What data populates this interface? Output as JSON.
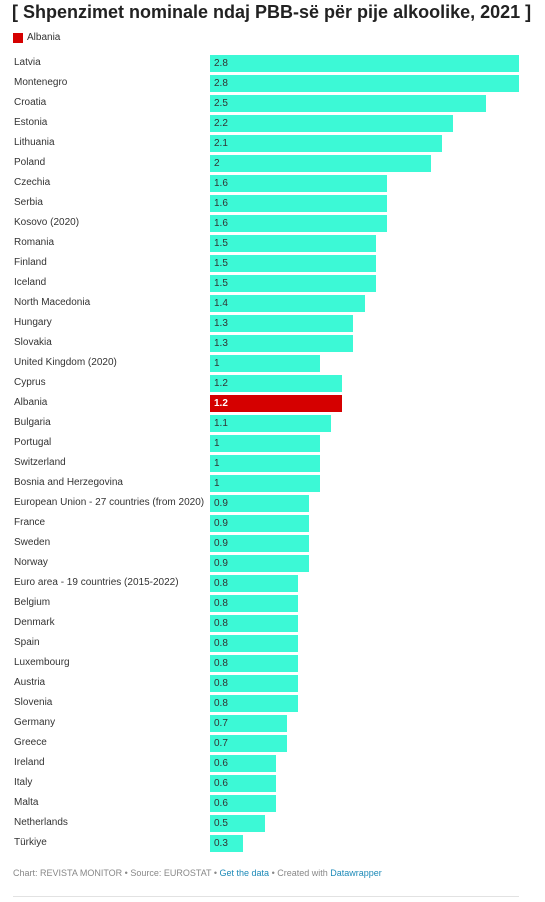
{
  "chart_data": {
    "type": "bar",
    "orientation": "horizontal",
    "title": "[ Shpenzimet nominale ndaj PBB-së për pije alkoolike, 2021 ]",
    "legend": {
      "label": "Albania",
      "color": "#d50000",
      "placement": "top-left"
    },
    "colors": {
      "bar": "#3cf9d6",
      "highlight": "#d50000"
    },
    "xlim": [
      0,
      2.8
    ],
    "highlight": "Albania",
    "categories": [
      "Latvia",
      "Montenegro",
      "Croatia",
      "Estonia",
      "Lithuania",
      "Poland",
      "Czechia",
      "Serbia",
      "Kosovo (2020)",
      "Romania",
      "Finland",
      "Iceland",
      "North Macedonia",
      "Hungary",
      "Slovakia",
      "United Kingdom (2020)",
      "Cyprus",
      "Albania",
      "Bulgaria",
      "Portugal",
      "Switzerland",
      "Bosnia and Herzegovina",
      "European Union - 27 countries (from 2020)",
      "France",
      "Sweden",
      "Norway",
      "Euro area - 19 countries (2015-2022)",
      "Belgium",
      "Denmark",
      "Spain",
      "Luxembourg",
      "Austria",
      "Slovenia",
      "Germany",
      "Greece",
      "Ireland",
      "Italy",
      "Malta",
      "Netherlands",
      "Türkiye"
    ],
    "values": [
      2.8,
      2.8,
      2.5,
      2.2,
      2.1,
      2,
      1.6,
      1.6,
      1.6,
      1.5,
      1.5,
      1.5,
      1.4,
      1.3,
      1.3,
      1,
      1.2,
      1.2,
      1.1,
      1,
      1,
      1,
      0.9,
      0.9,
      0.9,
      0.9,
      0.8,
      0.8,
      0.8,
      0.8,
      0.8,
      0.8,
      0.8,
      0.7,
      0.7,
      0.6,
      0.6,
      0.6,
      0.5,
      0.3
    ],
    "bar_lengths": [
      2.8,
      2.8,
      2.5,
      2.2,
      2.1,
      2,
      1.6,
      1.6,
      1.6,
      1.5,
      1.5,
      1.5,
      1.4,
      1.3,
      1.3,
      1,
      1.2,
      1.2,
      1.1,
      1,
      1,
      1,
      0.9,
      0.9,
      0.9,
      0.9,
      0.8,
      0.8,
      0.8,
      0.8,
      0.8,
      0.8,
      0.8,
      0.7,
      0.7,
      0.6,
      0.6,
      0.6,
      0.5,
      0.3
    ],
    "value_labels": [
      "2.8",
      "2.8",
      "2.5",
      "2.2",
      "2.1",
      "2",
      "1.6",
      "1.6",
      "1.6",
      "1.5",
      "1.5",
      "1.5",
      "1.4",
      "1.3",
      "1.3",
      "1",
      "1.2",
      "1.2",
      "1.1",
      "1",
      "1",
      "1",
      "0.9",
      "0.9",
      "0.9",
      "0.9",
      "0.8",
      "0.8",
      "0.8",
      "0.8",
      "0.8",
      "0.8",
      "0.8",
      "0.7",
      "0.7",
      "0.6",
      "0.6",
      "0.6",
      "0.5",
      "0.3"
    ]
  },
  "footer": {
    "chart_prefix": "Chart: REVISTA MONITOR • Source: EUROSTAT • ",
    "get_data": "Get the data",
    "created": " • Created with ",
    "datawrapper": "Datawrapper"
  }
}
